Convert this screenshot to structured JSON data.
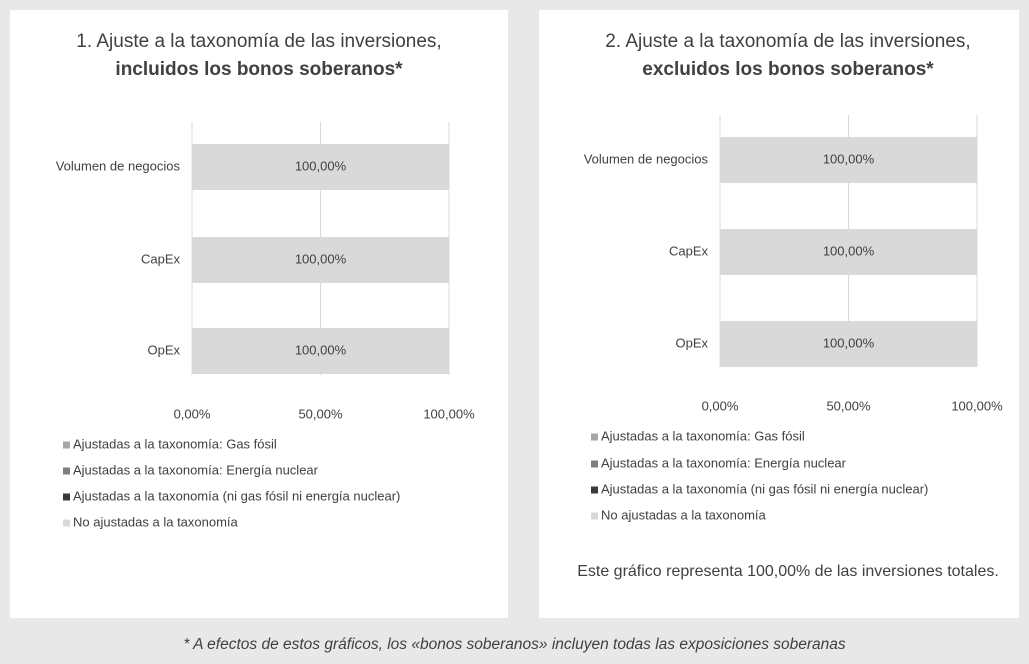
{
  "chart_data": [
    {
      "type": "hbar-stacked",
      "title": [
        "1. Ajuste a la taxonomía de las inversiones,",
        "incluidos los bonos soberanos*"
      ],
      "categories": [
        "Volumen de negocios",
        "CapEx",
        "OpEx"
      ],
      "series": [
        {
          "name": "Ajustadas a la taxonomía: Gas fósil",
          "color": "#a6a6a6",
          "values": [
            0,
            0,
            0
          ]
        },
        {
          "name": "Ajustadas a la taxonomía: Energía nuclear",
          "color": "#7f7f7f",
          "values": [
            0,
            0,
            0
          ]
        },
        {
          "name": "Ajustadas a la taxonomía (ni gas fósil ni energía nuclear)",
          "color": "#3a3a3a",
          "values": [
            0,
            0,
            0
          ]
        },
        {
          "name": "No ajustadas a la taxonomía",
          "color": "#d9d9d9",
          "values": [
            100,
            100,
            100
          ],
          "value_labels": [
            "100,00%",
            "100,00%",
            "100,00%"
          ]
        }
      ],
      "xlim": [
        0,
        100
      ],
      "xticks": [
        {
          "value": 0,
          "label": "0,00%"
        },
        {
          "value": 50,
          "label": "50,00%"
        },
        {
          "value": 100,
          "label": "100,00%"
        }
      ],
      "grid": true,
      "legend": "bottom"
    },
    {
      "type": "hbar-stacked",
      "title": [
        "2. Ajuste a la taxonomía de las inversiones,",
        "excluidos los bonos soberanos*"
      ],
      "categories": [
        "Volumen de negocios",
        "CapEx",
        "OpEx"
      ],
      "series": [
        {
          "name": "Ajustadas a la taxonomía: Gas fósil",
          "color": "#a6a6a6",
          "values": [
            0,
            0,
            0
          ]
        },
        {
          "name": "Ajustadas a la taxonomía: Energía nuclear",
          "color": "#7f7f7f",
          "values": [
            0,
            0,
            0
          ]
        },
        {
          "name": "Ajustadas a la taxonomía (ni gas fósil ni energía nuclear)",
          "color": "#3a3a3a",
          "values": [
            0,
            0,
            0
          ]
        },
        {
          "name": "No ajustadas a la taxonomía",
          "color": "#d9d9d9",
          "values": [
            100,
            100,
            100
          ],
          "value_labels": [
            "100,00%",
            "100,00%",
            "100,00%"
          ]
        }
      ],
      "xlim": [
        0,
        100
      ],
      "xticks": [
        {
          "value": 0,
          "label": "0,00%"
        },
        {
          "value": 50,
          "label": "50,00%"
        },
        {
          "value": 100,
          "label": "100,00%"
        }
      ],
      "grid": true,
      "legend": "bottom",
      "note": "Este gráfico representa 100,00% de las inversiones totales."
    }
  ],
  "footnote": "* A efectos de estos gráficos, los «bonos soberanos» incluyen todas las exposiciones soberanas"
}
